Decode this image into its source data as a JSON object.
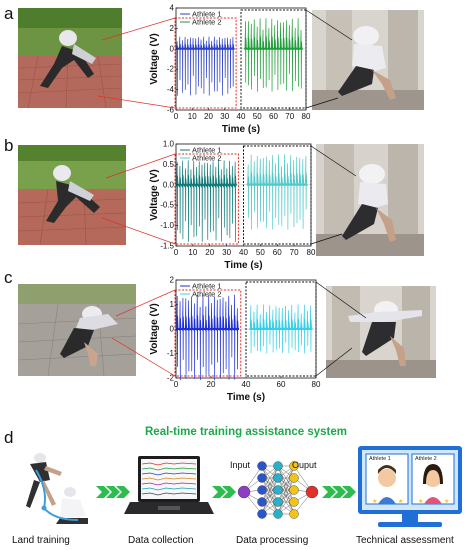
{
  "panels": {
    "a": {
      "letter": "a"
    },
    "b": {
      "letter": "b"
    },
    "c": {
      "letter": "c"
    },
    "d": {
      "letter": "d"
    }
  },
  "colors": {
    "athlete1_a": "#2b3fc9",
    "athlete2_a": "#1f9e3a",
    "athlete1_b": "#0f7a77",
    "athlete2_b": "#52c8c8",
    "athlete1_c": "#1e2fd8",
    "athlete2_c": "#36d0e6",
    "red_box": "#e0302a",
    "black_box": "#111111",
    "green_title": "#1ea84a",
    "arrow_green": "#2dbd4e"
  },
  "chart_data": [
    {
      "type": "line",
      "panel": "a",
      "xlabel": "Time (s)",
      "ylabel": "Voltage (V)",
      "xlim": [
        0,
        80
      ],
      "ylim": [
        -6,
        4
      ],
      "xticks": [
        0,
        10,
        20,
        30,
        40,
        50,
        60,
        70,
        80
      ],
      "yticks": [
        -6,
        -4,
        -2,
        0,
        2,
        4
      ],
      "legend_position": "top-left",
      "series": [
        {
          "name": "Athlete 1",
          "x_range": [
            0,
            36
          ],
          "peak_high": 1.2,
          "peak_low": -4.6,
          "spike_count": 22
        },
        {
          "name": "Athlete 2",
          "x_range": [
            42,
            78
          ],
          "peak_high": 3.0,
          "peak_low": -4.2,
          "spike_count": 20
        }
      ]
    },
    {
      "type": "line",
      "panel": "b",
      "xlabel": "Time (s)",
      "ylabel": "Voltage (V)",
      "xlim": [
        0,
        80
      ],
      "ylim": [
        -1.5,
        1.0
      ],
      "xticks": [
        0,
        10,
        20,
        30,
        40,
        50,
        60,
        70,
        80
      ],
      "yticks": [
        -1.5,
        -1.0,
        -0.5,
        0.0,
        0.5,
        1.0
      ],
      "legend_position": "top-left",
      "series": [
        {
          "name": "Athlete 1",
          "x_range": [
            0,
            36
          ],
          "peak_high": 0.6,
          "peak_low": -1.4,
          "spike_count": 22
        },
        {
          "name": "Athlete 2",
          "x_range": [
            42,
            78
          ],
          "peak_high": 0.75,
          "peak_low": -1.1,
          "spike_count": 20
        }
      ]
    },
    {
      "type": "line",
      "panel": "c",
      "xlabel": "Time (s)",
      "ylabel": "Voltage (V)",
      "xlim": [
        0,
        80
      ],
      "ylim": [
        -2,
        2
      ],
      "xticks": [
        0,
        20,
        40,
        60,
        80
      ],
      "yticks": [
        -2,
        -1,
        0,
        1,
        2
      ],
      "legend_position": "top-left",
      "series": [
        {
          "name": "Athlete 1",
          "x_range": [
            0,
            36
          ],
          "peak_high": 1.4,
          "peak_low": -2.1,
          "spike_count": 22
        },
        {
          "name": "Athlete 2",
          "x_range": [
            42,
            78
          ],
          "peak_high": 1.0,
          "peak_low": -1.0,
          "spike_count": 20
        }
      ]
    }
  ],
  "system": {
    "title": "Real-time training assistance system",
    "steps": [
      {
        "label": "Land training"
      },
      {
        "label": "Data collection"
      },
      {
        "label": "Data processing"
      },
      {
        "label": "Technical assessment"
      }
    ],
    "network": {
      "input_label": "Input",
      "output_label": "Ouput"
    },
    "monitor": {
      "athlete1_label": "Athlete 1",
      "athlete2_label": "Athlete 2"
    }
  }
}
